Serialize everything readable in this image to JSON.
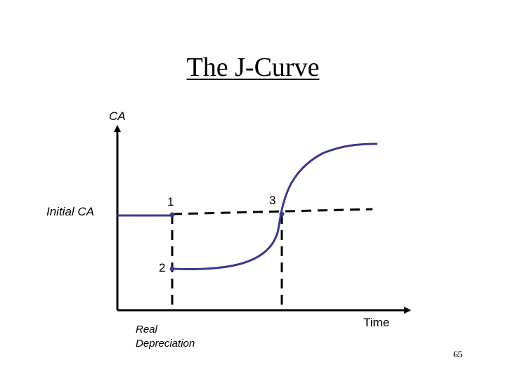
{
  "slide": {
    "title": "The J-Curve",
    "page_number": "65"
  },
  "diagram": {
    "y_axis_label": "CA",
    "x_axis_label": "Time",
    "initial_level_label": "Initial CA",
    "depreciation_label_line1": "Real",
    "depreciation_label_line2": "Depreciation",
    "points": [
      {
        "label": "1"
      },
      {
        "label": "2"
      },
      {
        "label": "3"
      }
    ],
    "colors": {
      "curve": "#3a3a8c",
      "axis": "#000000",
      "dashed": "#000000"
    }
  }
}
